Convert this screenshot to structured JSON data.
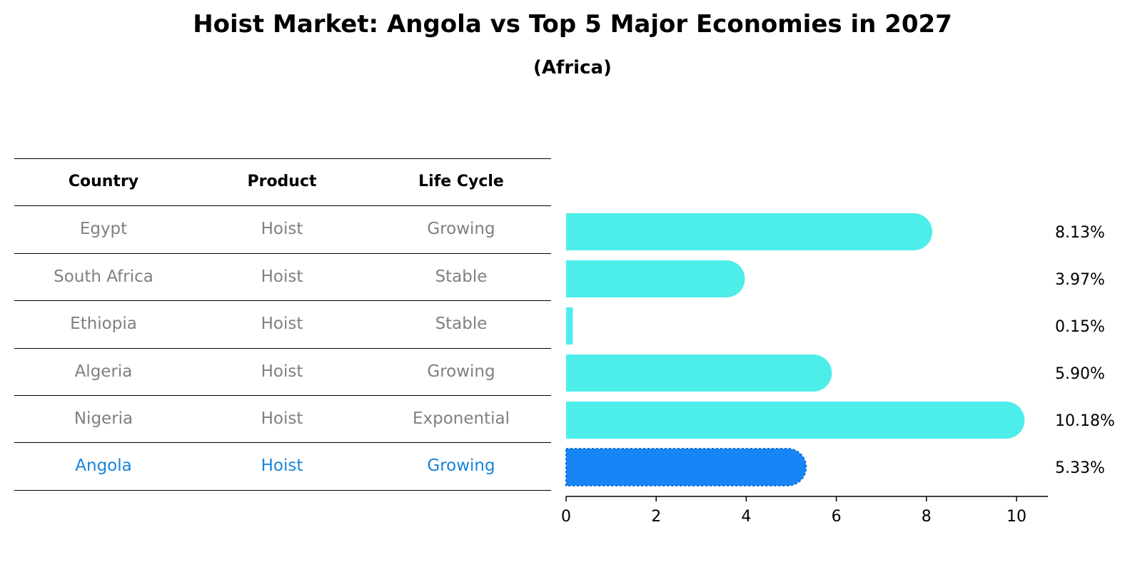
{
  "title": "Hoist Market: Angola vs Top 5 Major Economies in 2027",
  "subtitle": "(Africa)",
  "table": {
    "headers": [
      "Country",
      "Product",
      "Life Cycle"
    ],
    "rows": [
      {
        "country": "Egypt",
        "product": "Hoist",
        "life_cycle": "Growing",
        "highlight": false
      },
      {
        "country": "South Africa",
        "product": "Hoist",
        "life_cycle": "Stable",
        "highlight": false
      },
      {
        "country": "Ethiopia",
        "product": "Hoist",
        "life_cycle": "Stable",
        "highlight": false
      },
      {
        "country": "Algeria",
        "product": "Hoist",
        "life_cycle": "Growing",
        "highlight": false
      },
      {
        "country": "Nigeria",
        "product": "Hoist",
        "life_cycle": "Exponential",
        "highlight": false
      },
      {
        "country": "Angola",
        "product": "Hoist",
        "life_cycle": "Growing",
        "highlight": true
      }
    ]
  },
  "chart_data": {
    "type": "bar",
    "orientation": "horizontal",
    "categories": [
      "Egypt",
      "South Africa",
      "Ethiopia",
      "Algeria",
      "Nigeria",
      "Angola"
    ],
    "values": [
      8.13,
      3.97,
      0.15,
      5.9,
      10.18,
      5.33
    ],
    "value_labels": [
      "8.13%",
      "3.97%",
      "0.15%",
      "5.90%",
      "10.18%",
      "5.33%"
    ],
    "xlim": [
      0,
      10.5
    ],
    "xticks": [
      0,
      2,
      4,
      6,
      8,
      10
    ],
    "grid": false,
    "colors": {
      "default": "#4deeea",
      "highlight": "#1785f5"
    }
  }
}
